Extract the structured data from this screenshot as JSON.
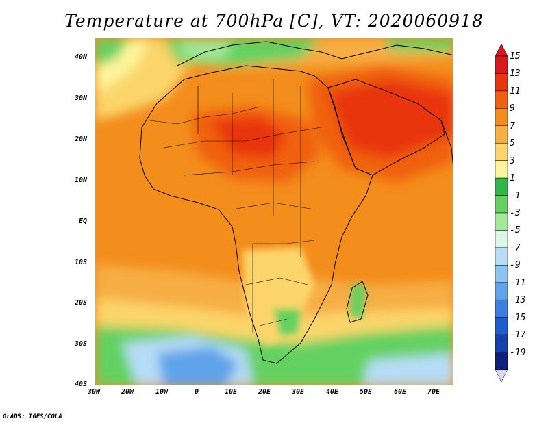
{
  "title": "Temperature at 700hPa [C], VT: 2020060918",
  "credit": "GrADS: IGES/COLA",
  "axes": {
    "lat_labels": [
      "40N",
      "30N",
      "20N",
      "10N",
      "EQ",
      "10S",
      "20S",
      "30S",
      "40S"
    ],
    "lon_labels": [
      "30W",
      "20W",
      "10W",
      "0",
      "10E",
      "20E",
      "30E",
      "40E",
      "50E",
      "60E",
      "70E"
    ]
  },
  "colorbar": {
    "levels": [
      "15",
      "13",
      "11",
      "9",
      "7",
      "5",
      "3",
      "1",
      "-1",
      "-3",
      "-5",
      "-7",
      "-9",
      "-11",
      "-13",
      "-15",
      "-17",
      "-19"
    ],
    "colors": [
      "#d7191c",
      "#e8340f",
      "#f06010",
      "#f38d1c",
      "#f6ae45",
      "#fbd56b",
      "#fdf49b",
      "#2fb848",
      "#63d162",
      "#a4e89a",
      "#ddf7e6",
      "#b7dcf6",
      "#8cc3f1",
      "#5fa3ea",
      "#3a7ee0",
      "#1f5ed2",
      "#1640ae",
      "#0e1f7e"
    ]
  }
}
